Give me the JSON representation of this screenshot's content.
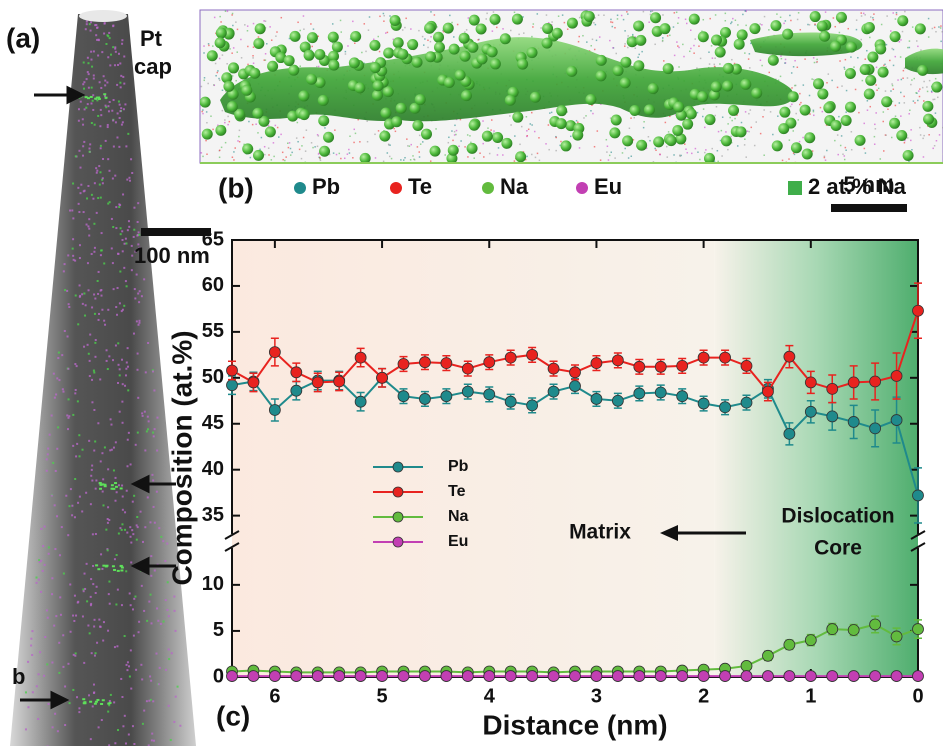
{
  "panel_a": {
    "label": "(a)",
    "pt_cap": [
      "Pt",
      "cap"
    ],
    "scale_bar": "100 nm",
    "marker": "b"
  },
  "panel_b": {
    "label": "(b)",
    "legend": [
      "Pb",
      "Te",
      "Na",
      "Eu"
    ],
    "isosurface": "2 at.% Na",
    "scale_bar": "5 nm"
  },
  "chart_data": {
    "type": "line",
    "label": "(c)",
    "xlabel": "Distance (nm)",
    "ylabel": "Composition (at.%)",
    "x": [
      6.4,
      6.2,
      6.0,
      5.8,
      5.6,
      5.4,
      5.2,
      5.0,
      4.8,
      4.6,
      4.4,
      4.2,
      4.0,
      3.8,
      3.6,
      3.4,
      3.2,
      3.0,
      2.8,
      2.6,
      2.4,
      2.2,
      2.0,
      1.8,
      1.6,
      1.4,
      1.2,
      1.0,
      0.8,
      0.6,
      0.4,
      0.2,
      0.0
    ],
    "xlim": [
      6.4,
      0
    ],
    "xticks": [
      6,
      5,
      4,
      3,
      2,
      1,
      0
    ],
    "ylim": [
      0,
      65
    ],
    "ybreak": [
      14,
      33
    ],
    "yticks": [
      0,
      5,
      10,
      35,
      40,
      45,
      50,
      55,
      60,
      65
    ],
    "series": [
      {
        "name": "Pb",
        "color": "#1f8a8c",
        "values": [
          49.2,
          49.6,
          46.5,
          48.6,
          49.7,
          49.7,
          47.4,
          50.0,
          48.0,
          47.7,
          48.0,
          48.5,
          48.2,
          47.4,
          47.0,
          48.5,
          49.1,
          47.7,
          47.5,
          48.3,
          48.4,
          48.0,
          47.2,
          46.8,
          47.3,
          48.8,
          43.9,
          46.3,
          45.8,
          45.2,
          44.5,
          45.4,
          37.2
        ],
        "errors": [
          1.0,
          1.0,
          1.2,
          1.0,
          1.0,
          1.0,
          1.0,
          1.0,
          0.8,
          0.8,
          0.8,
          0.8,
          0.8,
          0.8,
          0.8,
          0.8,
          0.8,
          0.8,
          0.8,
          0.8,
          0.8,
          0.8,
          0.8,
          0.8,
          0.8,
          1.0,
          1.2,
          1.2,
          1.5,
          1.8,
          2.0,
          2.5,
          3.0
        ]
      },
      {
        "name": "Te",
        "color": "#e8231f",
        "values": [
          50.8,
          49.5,
          52.8,
          50.6,
          49.5,
          49.6,
          52.2,
          50.0,
          51.5,
          51.7,
          51.6,
          51.0,
          51.7,
          52.2,
          52.5,
          51.0,
          50.6,
          51.6,
          51.9,
          51.2,
          51.2,
          51.3,
          52.2,
          52.2,
          51.3,
          48.5,
          52.3,
          49.5,
          48.8,
          49.5,
          49.6,
          50.2,
          57.3
        ],
        "errors": [
          1.0,
          1.0,
          1.5,
          1.0,
          1.0,
          1.0,
          1.0,
          1.0,
          0.8,
          0.8,
          0.8,
          0.8,
          0.8,
          0.8,
          0.8,
          0.8,
          0.8,
          0.8,
          0.8,
          0.8,
          0.8,
          0.8,
          0.8,
          0.8,
          0.8,
          1.0,
          1.2,
          1.2,
          1.5,
          1.8,
          2.0,
          2.5,
          3.0
        ]
      },
      {
        "name": "Na",
        "color": "#62bb3e",
        "values": [
          0.6,
          0.7,
          0.6,
          0.5,
          0.5,
          0.5,
          0.5,
          0.6,
          0.6,
          0.6,
          0.6,
          0.5,
          0.6,
          0.6,
          0.6,
          0.5,
          0.6,
          0.6,
          0.6,
          0.6,
          0.6,
          0.7,
          0.8,
          0.9,
          1.2,
          2.3,
          3.5,
          4.0,
          5.2,
          5.1,
          5.7,
          4.4,
          5.2
        ],
        "errors": [
          0.3,
          0.3,
          0.3,
          0.3,
          0.3,
          0.3,
          0.3,
          0.3,
          0.3,
          0.3,
          0.3,
          0.3,
          0.3,
          0.3,
          0.3,
          0.3,
          0.3,
          0.3,
          0.3,
          0.3,
          0.3,
          0.3,
          0.3,
          0.3,
          0.4,
          0.5,
          0.5,
          0.6,
          0.6,
          0.6,
          0.9,
          0.9,
          1.0
        ]
      },
      {
        "name": "Eu",
        "color": "#c23fb3",
        "values": [
          0.1,
          0.1,
          0.1,
          0.1,
          0.1,
          0.1,
          0.1,
          0.1,
          0.1,
          0.1,
          0.1,
          0.1,
          0.1,
          0.1,
          0.1,
          0.1,
          0.1,
          0.1,
          0.1,
          0.1,
          0.1,
          0.1,
          0.1,
          0.1,
          0.1,
          0.1,
          0.1,
          0.1,
          0.1,
          0.1,
          0.1,
          0.1,
          0.1
        ],
        "errors": [
          0.1,
          0.1,
          0.1,
          0.1,
          0.1,
          0.1,
          0.1,
          0.1,
          0.1,
          0.1,
          0.1,
          0.1,
          0.1,
          0.1,
          0.1,
          0.1,
          0.1,
          0.1,
          0.1,
          0.1,
          0.1,
          0.1,
          0.1,
          0.1,
          0.1,
          0.1,
          0.1,
          0.1,
          0.1,
          0.1,
          0.1,
          0.1,
          0.1
        ]
      }
    ],
    "annotations": {
      "matrix": "Matrix",
      "core": [
        "Dislocation",
        "Core"
      ]
    }
  }
}
